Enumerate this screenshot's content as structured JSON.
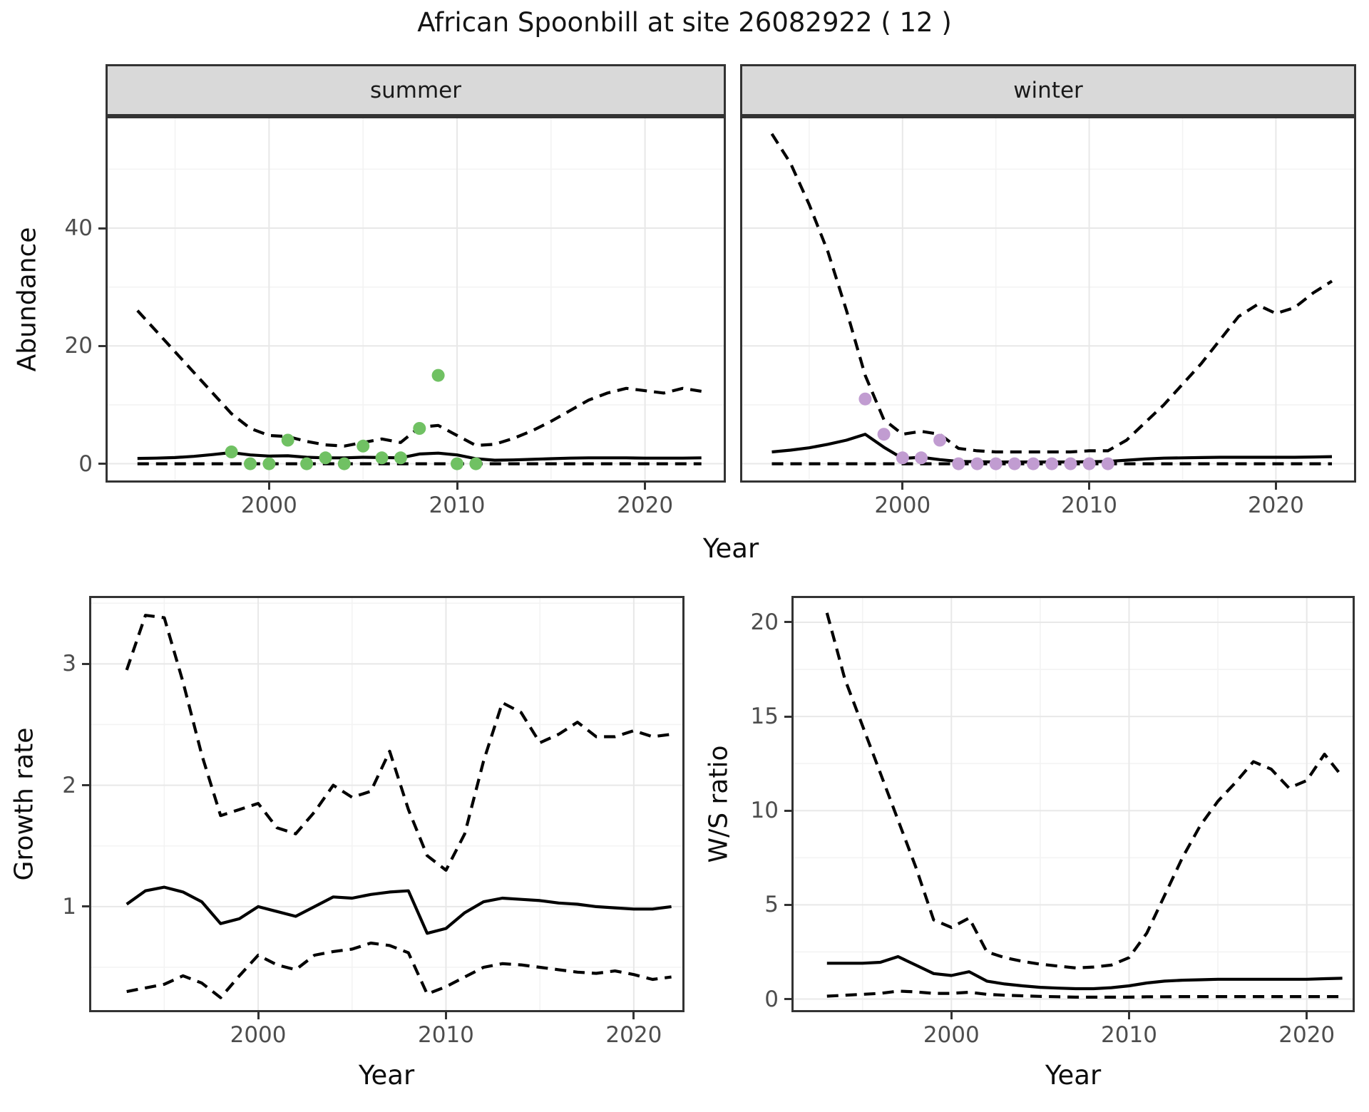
{
  "title": "African Spoonbill at site 26082922 ( 12 )",
  "facets": {
    "summer": "summer",
    "winter": "winter"
  },
  "axes": {
    "abundance": "Abundance",
    "growth": "Growth rate",
    "ws": "W/S ratio",
    "year": "Year"
  },
  "colors": {
    "summer_point": "#70c163",
    "winter_point": "#c19cd1",
    "line": "#000000",
    "strip_bg": "#d9d9d9",
    "grid_major": "#e8e8e8",
    "grid_minor": "#f3f3f3",
    "axis_text": "#4d4d4d",
    "panel_border": "#333333"
  },
  "chart_data": [
    {
      "id": "abundance-summer",
      "type": "line",
      "facet_label": "summer",
      "xlabel": "Year",
      "ylabel": "Abundance",
      "xlim": [
        1991.3,
        2024.3
      ],
      "ylim": [
        -3.2,
        59
      ],
      "xticks": [
        2000,
        2010,
        2020
      ],
      "yticks": [
        0,
        20,
        40
      ],
      "xminor": [
        1995,
        2005,
        2015
      ],
      "yminor": [
        10,
        30,
        50
      ],
      "x": [
        1993,
        1994,
        1995,
        1996,
        1997,
        1998,
        1999,
        2000,
        2001,
        2002,
        2003,
        2004,
        2005,
        2006,
        2007,
        2008,
        2009,
        2010,
        2011,
        2012,
        2013,
        2014,
        2015,
        2016,
        2017,
        2018,
        2019,
        2020,
        2021,
        2022,
        2023
      ],
      "series": [
        {
          "name": "mean",
          "style": "solid",
          "values": [
            0.9,
            0.95,
            1.05,
            1.25,
            1.55,
            1.9,
            1.5,
            1.3,
            1.35,
            1.1,
            1.0,
            1.0,
            1.1,
            1.05,
            1.0,
            1.65,
            1.8,
            1.5,
            0.85,
            0.6,
            0.65,
            0.75,
            0.85,
            0.95,
            1.0,
            1.0,
            1.0,
            0.95,
            0.95,
            0.95,
            1.0
          ]
        },
        {
          "name": "upper_ci",
          "style": "dashed",
          "values": [
            26,
            22.5,
            19,
            15.5,
            12,
            8.5,
            6,
            4.8,
            4.6,
            3.8,
            3.2,
            3.0,
            3.6,
            4.2,
            3.6,
            6.2,
            6.5,
            4.8,
            3.1,
            3.3,
            4.3,
            5.6,
            7.2,
            9.0,
            10.8,
            12.0,
            12.8,
            12.4,
            12.0,
            12.8,
            12.3
          ]
        },
        {
          "name": "lower_ci",
          "style": "dashed",
          "values": [
            0,
            0,
            0,
            0,
            0,
            0,
            0,
            0,
            0,
            0,
            0,
            0,
            0,
            0,
            0,
            0,
            0,
            0,
            0,
            0,
            0,
            0,
            0,
            0,
            0,
            0,
            0,
            0,
            0,
            0,
            0
          ]
        }
      ],
      "points": {
        "name": "summer_observations",
        "color_key": "summer_point",
        "x": [
          1998,
          1999,
          2000,
          2001,
          2002,
          2003,
          2004,
          2005,
          2006,
          2007,
          2008,
          2009,
          2010,
          2011
        ],
        "y": [
          2,
          0,
          0,
          4,
          0,
          1,
          0,
          3,
          1,
          1,
          6,
          15,
          0,
          0
        ]
      }
    },
    {
      "id": "abundance-winter",
      "type": "line",
      "facet_label": "winter",
      "xlabel": "Year",
      "ylabel": "Abundance",
      "xlim": [
        1991.3,
        2024.3
      ],
      "ylim": [
        -3.2,
        59
      ],
      "xticks": [
        2000,
        2010,
        2020
      ],
      "yticks": [
        0,
        20,
        40
      ],
      "xminor": [
        1995,
        2005,
        2015
      ],
      "yminor": [
        10,
        30,
        50
      ],
      "x": [
        1993,
        1994,
        1995,
        1996,
        1997,
        1998,
        1999,
        2000,
        2001,
        2002,
        2003,
        2004,
        2005,
        2006,
        2007,
        2008,
        2009,
        2010,
        2011,
        2012,
        2013,
        2014,
        2015,
        2016,
        2017,
        2018,
        2019,
        2020,
        2021,
        2022,
        2023
      ],
      "series": [
        {
          "name": "mean",
          "style": "solid",
          "values": [
            2.0,
            2.3,
            2.7,
            3.3,
            4.0,
            5.0,
            2.8,
            0.9,
            1.1,
            0.7,
            0.4,
            0.35,
            0.3,
            0.3,
            0.3,
            0.3,
            0.3,
            0.35,
            0.4,
            0.6,
            0.8,
            0.95,
            1.0,
            1.05,
            1.1,
            1.1,
            1.1,
            1.1,
            1.1,
            1.15,
            1.2
          ]
        },
        {
          "name": "upper_ci",
          "style": "dashed",
          "values": [
            56,
            51,
            44,
            36,
            26,
            15,
            7.5,
            5,
            5.5,
            5,
            2.6,
            2.2,
            2.0,
            2.0,
            2.0,
            2.0,
            2.0,
            2.2,
            2.2,
            4,
            7,
            10,
            13.5,
            17,
            21,
            25,
            27,
            25.5,
            26.5,
            29,
            31
          ]
        },
        {
          "name": "lower_ci",
          "style": "dashed",
          "values": [
            0,
            0,
            0,
            0,
            0,
            0,
            0,
            0,
            0,
            0,
            0,
            0,
            0,
            0,
            0,
            0,
            0,
            0,
            0,
            0,
            0,
            0,
            0,
            0,
            0,
            0,
            0,
            0,
            0,
            0,
            0
          ]
        }
      ],
      "points": {
        "name": "winter_observations",
        "color_key": "winter_point",
        "x": [
          1998,
          1999,
          2000,
          2001,
          2002,
          2003,
          2004,
          2005,
          2006,
          2007,
          2008,
          2009,
          2010,
          2011
        ],
        "y": [
          11,
          5,
          1,
          1,
          4,
          0,
          0,
          0,
          0,
          0,
          0,
          0,
          0,
          0
        ]
      }
    },
    {
      "id": "growth-rate",
      "type": "line",
      "facet_label": "",
      "xlabel": "Year",
      "ylabel": "Growth rate",
      "xlim": [
        1991.0,
        2022.7
      ],
      "ylim": [
        0.13,
        3.56
      ],
      "xticks": [
        2000,
        2010,
        2020
      ],
      "yticks": [
        1,
        2,
        3
      ],
      "xminor": [
        1995,
        2005,
        2015
      ],
      "yminor": [
        0.5,
        1.5,
        2.5,
        3.5
      ],
      "x": [
        1993,
        1994,
        1995,
        1996,
        1997,
        1998,
        1999,
        2000,
        2001,
        2002,
        2003,
        2004,
        2005,
        2006,
        2007,
        2008,
        2009,
        2010,
        2011,
        2012,
        2013,
        2014,
        2015,
        2016,
        2017,
        2018,
        2019,
        2020,
        2021,
        2022
      ],
      "series": [
        {
          "name": "mean",
          "style": "solid",
          "values": [
            1.02,
            1.13,
            1.16,
            1.12,
            1.04,
            0.86,
            0.9,
            1.0,
            0.96,
            0.92,
            1.0,
            1.08,
            1.07,
            1.1,
            1.12,
            1.13,
            0.78,
            0.82,
            0.95,
            1.04,
            1.07,
            1.06,
            1.05,
            1.03,
            1.02,
            1.0,
            0.99,
            0.98,
            0.98,
            1.0
          ]
        },
        {
          "name": "upper_ci",
          "style": "dashed",
          "values": [
            2.95,
            3.4,
            3.38,
            2.85,
            2.25,
            1.75,
            1.8,
            1.85,
            1.65,
            1.6,
            1.78,
            2.0,
            1.9,
            1.95,
            2.28,
            1.8,
            1.42,
            1.3,
            1.6,
            2.2,
            2.68,
            2.6,
            2.35,
            2.42,
            2.52,
            2.4,
            2.4,
            2.45,
            2.4,
            2.42
          ]
        },
        {
          "name": "lower_ci",
          "style": "dashed",
          "values": [
            0.3,
            0.33,
            0.36,
            0.43,
            0.37,
            0.25,
            0.43,
            0.6,
            0.52,
            0.48,
            0.6,
            0.63,
            0.65,
            0.7,
            0.68,
            0.62,
            0.28,
            0.34,
            0.42,
            0.5,
            0.53,
            0.52,
            0.5,
            0.48,
            0.46,
            0.45,
            0.47,
            0.44,
            0.4,
            0.42
          ]
        }
      ],
      "points": null
    },
    {
      "id": "ws-ratio",
      "type": "line",
      "facet_label": "",
      "xlabel": "Year",
      "ylabel": "W/S ratio",
      "xlim": [
        1991.0,
        2022.7
      ],
      "ylim": [
        -0.7,
        21.4
      ],
      "xticks": [
        2000,
        2010,
        2020
      ],
      "yticks": [
        0,
        5,
        10,
        15,
        20
      ],
      "xminor": [
        1995,
        2005,
        2015
      ],
      "yminor": [
        2.5,
        7.5,
        12.5,
        17.5
      ],
      "x": [
        1993,
        1994,
        1995,
        1996,
        1997,
        1998,
        1999,
        2000,
        2001,
        2002,
        2003,
        2004,
        2005,
        2006,
        2007,
        2008,
        2009,
        2010,
        2011,
        2012,
        2013,
        2014,
        2015,
        2016,
        2017,
        2018,
        2019,
        2020,
        2021,
        2022
      ],
      "series": [
        {
          "name": "mean",
          "style": "solid",
          "values": [
            1.9,
            1.9,
            1.9,
            1.95,
            2.25,
            1.8,
            1.35,
            1.25,
            1.45,
            0.95,
            0.8,
            0.7,
            0.62,
            0.58,
            0.55,
            0.55,
            0.6,
            0.7,
            0.85,
            0.95,
            1.0,
            1.02,
            1.05,
            1.05,
            1.05,
            1.05,
            1.05,
            1.05,
            1.08,
            1.1
          ]
        },
        {
          "name": "upper_ci",
          "style": "dashed",
          "values": [
            20.5,
            17,
            14.5,
            12,
            9.5,
            7,
            4.2,
            3.8,
            4.3,
            2.5,
            2.2,
            2.0,
            1.85,
            1.75,
            1.65,
            1.7,
            1.8,
            2.2,
            3.5,
            5.5,
            7.5,
            9.2,
            10.5,
            11.5,
            12.6,
            12.2,
            11.2,
            11.6,
            13.0,
            11.8
          ]
        },
        {
          "name": "lower_ci",
          "style": "dashed",
          "values": [
            0.15,
            0.2,
            0.25,
            0.3,
            0.42,
            0.38,
            0.3,
            0.3,
            0.36,
            0.25,
            0.2,
            0.17,
            0.14,
            0.12,
            0.1,
            0.1,
            0.1,
            0.1,
            0.12,
            0.12,
            0.13,
            0.13,
            0.13,
            0.13,
            0.13,
            0.13,
            0.13,
            0.13,
            0.13,
            0.13
          ]
        }
      ],
      "points": null
    }
  ]
}
